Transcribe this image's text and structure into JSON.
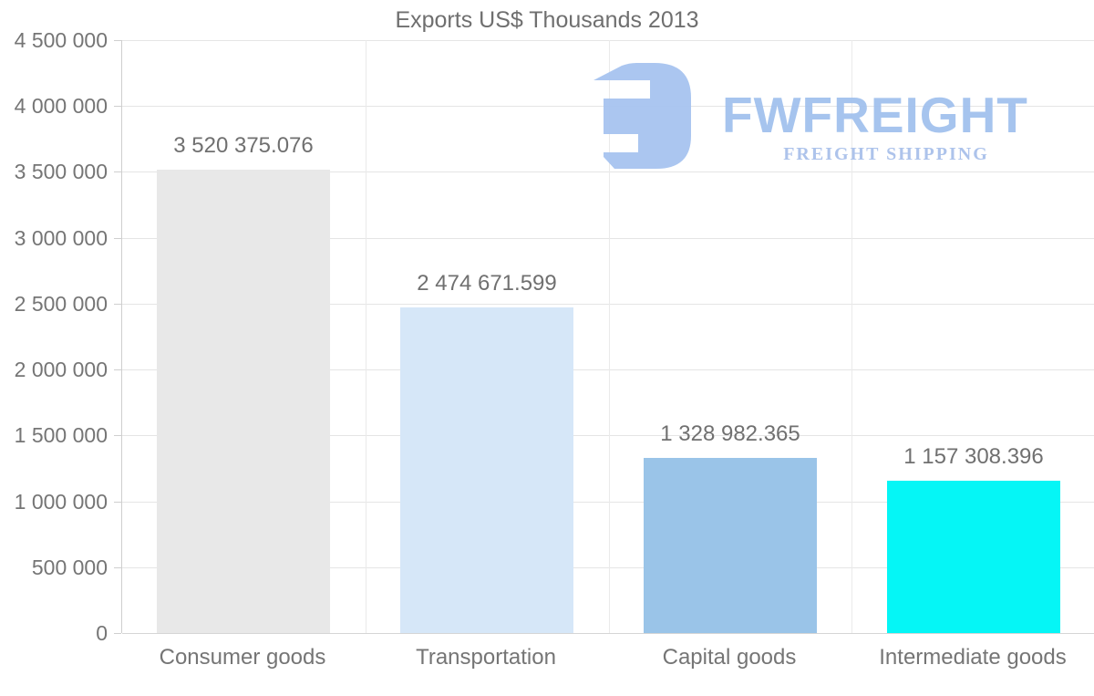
{
  "title": "Exports US$ Thousands 2013",
  "logo": {
    "brand": "FWFREIGHT",
    "tagline": "FREIGHT SHIPPING",
    "icon": "fwfreight-mark-icon",
    "color_icon": "#a7c4f0",
    "color_brand": "#a2c1ee",
    "color_tagline": "#a9c0ea"
  },
  "colors": {
    "background": "#ffffff",
    "title_text": "#6f6f6f",
    "axis_text": "#757575",
    "gridline": "#e5e5e5",
    "axis_line": "#cfcfcf"
  },
  "chart_data": {
    "type": "bar",
    "title": "Exports US$ Thousands 2013",
    "categories": [
      "Consumer goods",
      "Transportation",
      "Capital goods",
      "Intermediate goods"
    ],
    "values": [
      3520375.076,
      2474671.599,
      1328982.365,
      1157308.396
    ],
    "value_labels": [
      "3 520 375.076",
      "2 474 671.599",
      "1 328 982.365",
      "1 157 308.396"
    ],
    "bar_colors": [
      "#e8e8e8",
      "#d6e7f8",
      "#9ac4e8",
      "#05f6f6"
    ],
    "xlabel": "",
    "ylabel": "",
    "ylim": [
      0,
      4500000
    ],
    "ytick_step": 500000,
    "ytick_labels": [
      "0",
      "500 000",
      "1 000 000",
      "1 500 000",
      "2 000 000",
      "2 500 000",
      "3 000 000",
      "3 500 000",
      "4 000 000",
      "4 500 000"
    ],
    "grid": "horizontal gridlines + vertical category separators",
    "legend": "none"
  }
}
